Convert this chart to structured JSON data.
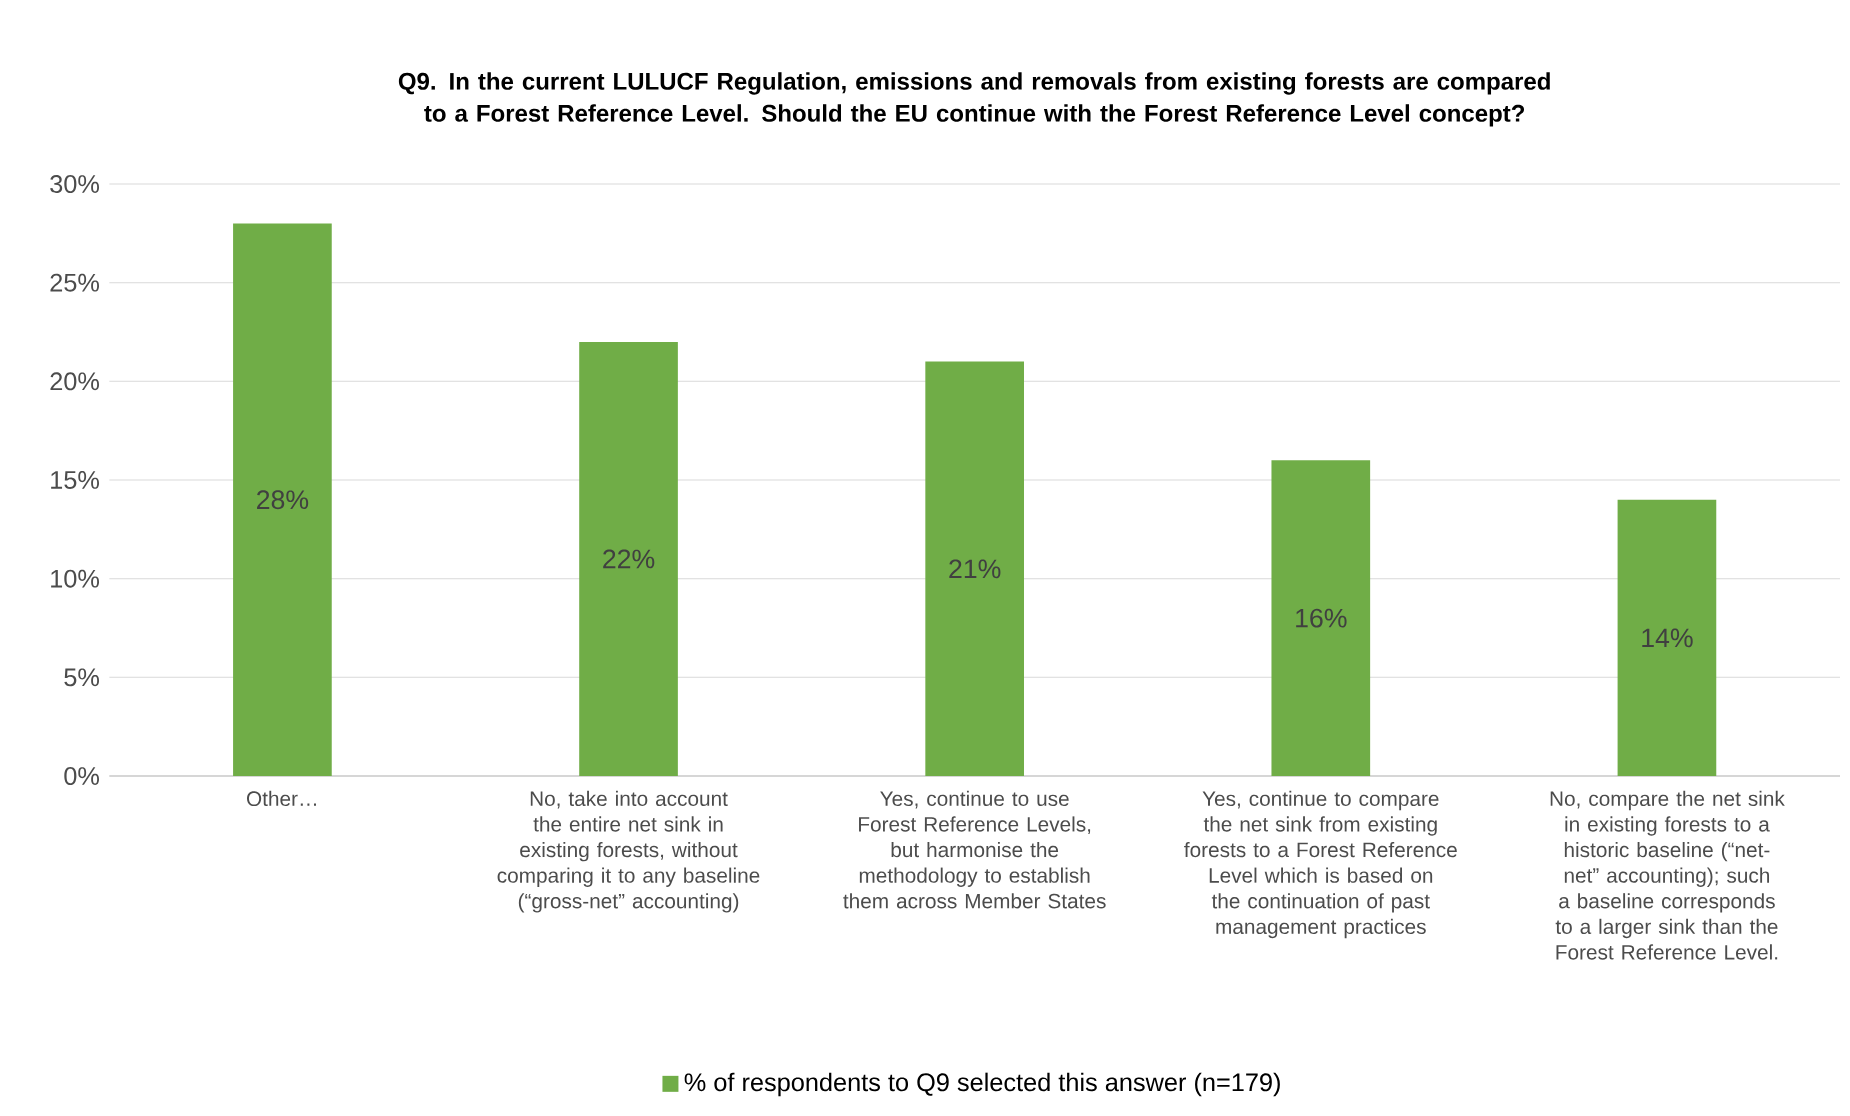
{
  "chart_data": {
    "type": "bar",
    "title": "Q9. In the current LULUCF Regulation, emissions and removals from existing forests are compared to a Forest Reference Level.  Should the EU continue with the Forest Reference Level concept?",
    "categories": [
      "Other…",
      "No, take into account the entire net sink in existing forests, without comparing it to any baseline (“gross-net” accounting)",
      "Yes, continue to use Forest Reference Levels, but harmonise the methodology to establish them across Member States",
      "Yes, continue to compare the net sink from existing forests to a Forest Reference Level which is based on the continuation of past management practices",
      "No, compare the net sink in existing forests to a historic baseline (“net-net” accounting); such a baseline corresponds to a larger sink than the Forest Reference Level."
    ],
    "series": [
      {
        "name": "% of respondents to Q9 selected this answer (n=179)",
        "color": "#70ad47",
        "values": [
          28,
          22,
          21,
          16,
          14
        ],
        "value_labels": [
          "28%",
          "22%",
          "21%",
          "16%",
          "14%"
        ]
      }
    ],
    "ylim": [
      0,
      30
    ],
    "yticks": [
      {
        "value": 0,
        "label": "0%"
      },
      {
        "value": 5,
        "label": "5%"
      },
      {
        "value": 10,
        "label": "10%"
      },
      {
        "value": 15,
        "label": "15%"
      },
      {
        "value": 20,
        "label": "20%"
      },
      {
        "value": 25,
        "label": "25%"
      },
      {
        "value": 30,
        "label": "30%"
      }
    ],
    "grid": "y",
    "legend": "bottom"
  }
}
